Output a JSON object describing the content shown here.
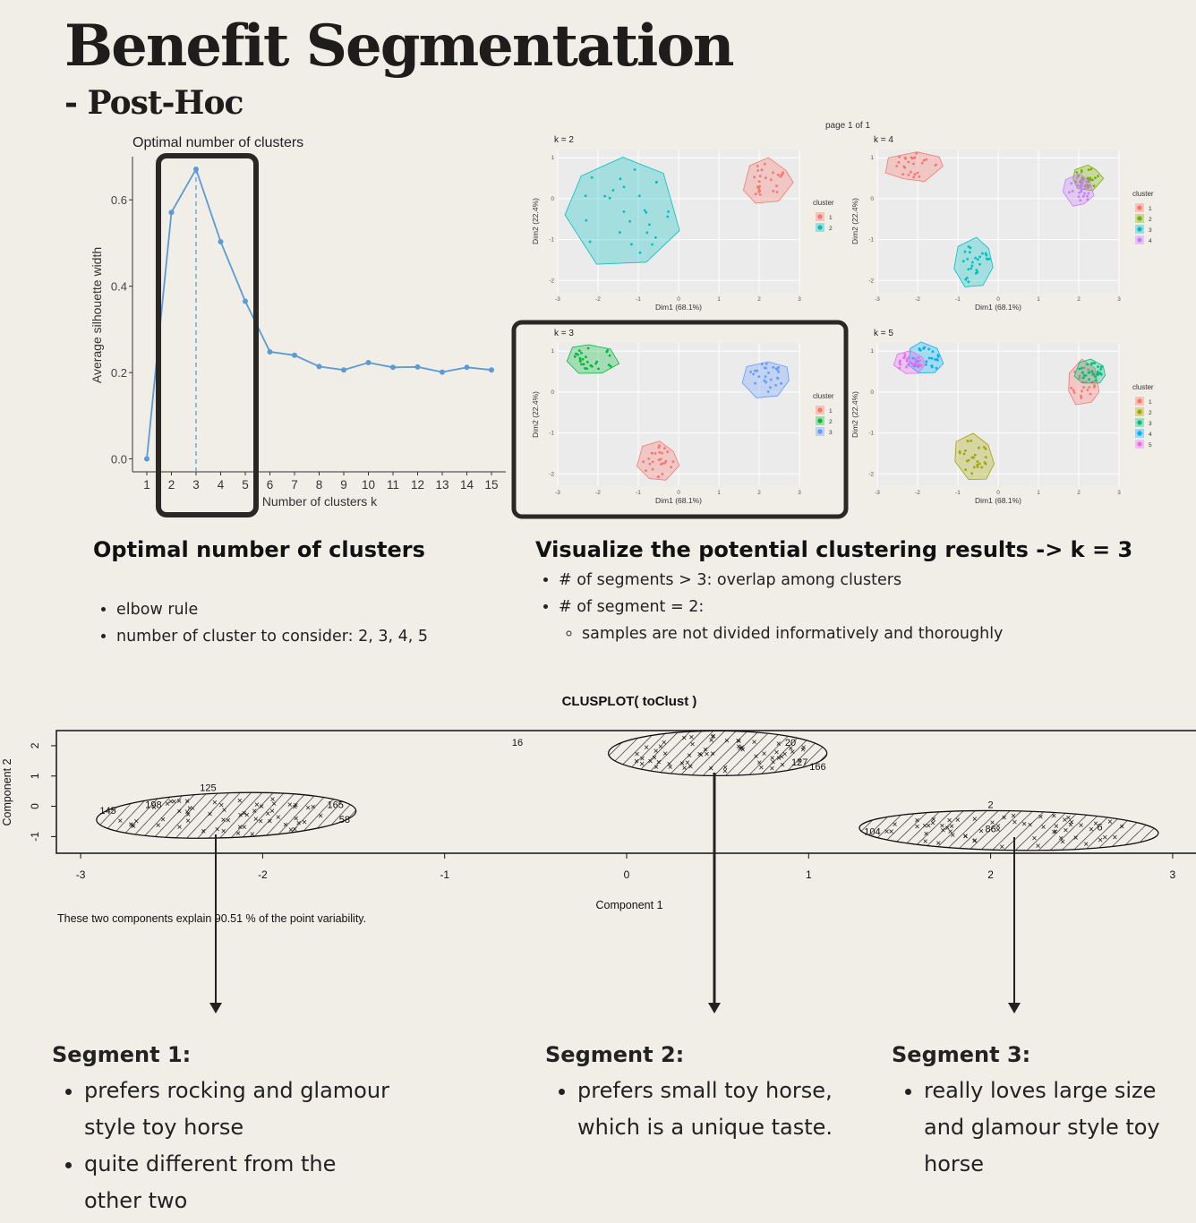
{
  "title": "Benefit Segmentation",
  "subtitle": "- Post-Hoc",
  "silhouette_heading": "Optimal number of clusters",
  "silhouette_bullets": [
    "elbow rule",
    "number of cluster to consider: 2, 3, 4, 5"
  ],
  "viz_heading": "Visualize the potential clustering results -> k = 3",
  "viz_bullets": [
    "# of segments > 3: overlap among clusters",
    "# of segment = 2:",
    "samples are not divided informatively and thoroughly"
  ],
  "segments": [
    {
      "title": "Segment 1:",
      "points": [
        "prefers rocking and glamour style toy horse",
        "quite different from the other two"
      ]
    },
    {
      "title": "Segment 2:",
      "points": [
        "prefers small toy horse, which is a unique taste."
      ]
    },
    {
      "title": "Segment 3:",
      "points": [
        "really loves large size and glamour style toy horse"
      ]
    }
  ],
  "chart_data": [
    {
      "type": "line",
      "title": "Optimal number of clusters",
      "xlabel": "Number of clusters k",
      "ylabel": "Average silhouette width",
      "x": [
        1,
        2,
        3,
        4,
        5,
        6,
        7,
        8,
        9,
        10,
        11,
        12,
        13,
        14,
        15
      ],
      "values": [
        0.0,
        0.571,
        0.671,
        0.503,
        0.365,
        0.248,
        0.24,
        0.214,
        0.206,
        0.223,
        0.212,
        0.213,
        0.201,
        0.212,
        0.206
      ],
      "yticks": [
        0.0,
        0.2,
        0.4,
        0.6
      ],
      "ytick_labels": [
        "0.0",
        "0.2",
        "0.4",
        "0.6"
      ],
      "ylim": [
        -0.03,
        0.7
      ],
      "optimal_k": 3,
      "color": "#5b9bd5",
      "grid": false
    },
    {
      "type": "scatter",
      "page_label": "page 1 of 1",
      "xlabel": "Dim1 (68.1%)",
      "ylabel": "Dim2 (22.4%)",
      "xlim": [
        -3,
        3
      ],
      "ylim": [
        -2.3,
        1.2
      ],
      "xticks": [
        "-3",
        "-2",
        "-1",
        "0",
        "1",
        "2",
        "3"
      ],
      "yticks": [
        "1",
        "0",
        "-1",
        "-2"
      ],
      "legend_title": "cluster",
      "grid": true,
      "panels": [
        {
          "label": "k = 2",
          "clusters": [
            {
              "name": "1",
              "color": "#f8766d",
              "cx": 2.2,
              "cy": 0.4,
              "rx": 0.6,
              "ry": 0.6
            },
            {
              "name": "2",
              "color": "#00bfc4",
              "cx": -1.4,
              "cy": -0.3,
              "rx": 1.5,
              "ry": 1.4
            }
          ]
        },
        {
          "label": "k = 4",
          "clusters": [
            {
              "name": "1",
              "color": "#f8766d",
              "cx": -2.1,
              "cy": 0.8,
              "rx": 0.7,
              "ry": 0.4
            },
            {
              "name": "2",
              "color": "#7cae00",
              "cx": 2.2,
              "cy": 0.5,
              "rx": 0.4,
              "ry": 0.3
            },
            {
              "name": "3",
              "color": "#00bfc4",
              "cx": -0.6,
              "cy": -1.6,
              "rx": 0.5,
              "ry": 0.6
            },
            {
              "name": "4",
              "color": "#c77cff",
              "cx": 2.0,
              "cy": 0.2,
              "rx": 0.4,
              "ry": 0.4
            }
          ]
        },
        {
          "label": "k = 3",
          "clusters": [
            {
              "name": "1",
              "color": "#f8766d",
              "cx": -0.5,
              "cy": -1.7,
              "rx": 0.5,
              "ry": 0.5
            },
            {
              "name": "2",
              "color": "#00ba38",
              "cx": -2.1,
              "cy": 0.8,
              "rx": 0.7,
              "ry": 0.4
            },
            {
              "name": "3",
              "color": "#619cff",
              "cx": 2.2,
              "cy": 0.3,
              "rx": 0.6,
              "ry": 0.5
            }
          ]
        },
        {
          "label": "k = 5",
          "clusters": [
            {
              "name": "1",
              "color": "#f8766d",
              "cx": 2.1,
              "cy": 0.2,
              "rx": 0.4,
              "ry": 0.6
            },
            {
              "name": "2",
              "color": "#a3a500",
              "cx": -0.6,
              "cy": -1.6,
              "rx": 0.5,
              "ry": 0.6
            },
            {
              "name": "3",
              "color": "#00bf7d",
              "cx": 2.3,
              "cy": 0.5,
              "rx": 0.4,
              "ry": 0.3
            },
            {
              "name": "4",
              "color": "#00b0f6",
              "cx": -1.8,
              "cy": 0.8,
              "rx": 0.5,
              "ry": 0.4
            },
            {
              "name": "5",
              "color": "#e76bf3",
              "cx": -2.2,
              "cy": 0.7,
              "rx": 0.4,
              "ry": 0.3
            }
          ]
        }
      ]
    },
    {
      "type": "scatter",
      "title": "CLUSPLOT( toClust )",
      "xlabel": "Component 1",
      "ylabel": "Component 2",
      "xlim": [
        -3.05,
        3.05
      ],
      "ylim": [
        -1.55,
        2.5
      ],
      "xticks": [
        -3,
        -2,
        -1,
        0,
        1,
        2,
        3
      ],
      "yticks": [
        -1,
        0,
        1,
        2
      ],
      "caption": "These two components explain 90.51 % of the point variability.",
      "clusters": [
        {
          "name": "Segment 1",
          "cx": -2.2,
          "cy": -0.3,
          "rx": 0.63,
          "ry": 0.8
        },
        {
          "name": "Segment 2",
          "cx": 0.5,
          "cy": 1.75,
          "rx": 0.6,
          "ry": 0.8
        },
        {
          "name": "Segment 3",
          "cx": 2.1,
          "cy": -0.8,
          "rx": 0.82,
          "ry": 0.7
        }
      ],
      "point_labels": [
        "125",
        "145",
        "198",
        "165",
        "58",
        "16",
        "20",
        "127",
        "166",
        "104",
        "2",
        "6",
        "86"
      ]
    }
  ]
}
